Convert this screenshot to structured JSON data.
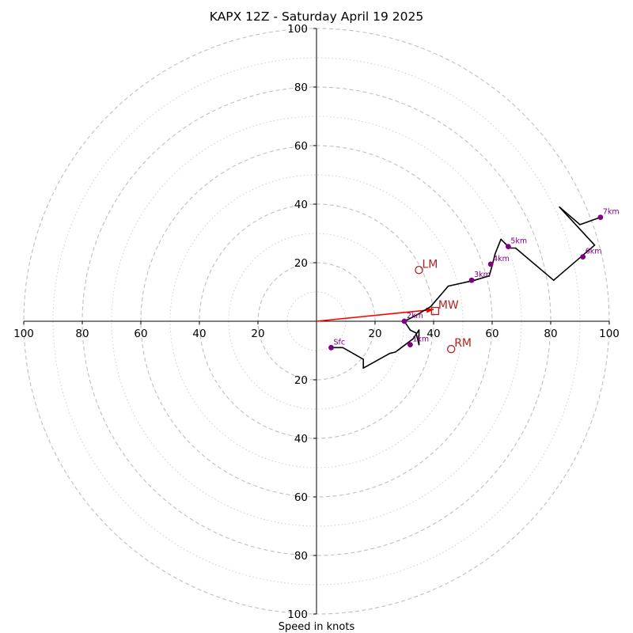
{
  "chart_data": {
    "type": "line",
    "title": "KAPX 12Z - Saturday April 19 2025",
    "xlabel": "Speed in knots",
    "ylabel": "",
    "xlim": [
      -100,
      100
    ],
    "ylim": [
      -100,
      100
    ],
    "major_rings": [
      20,
      40,
      60,
      80,
      100
    ],
    "minor_rings": [
      10,
      30,
      50,
      70,
      90
    ],
    "x_tick_labels": [
      "100",
      "80",
      "60",
      "40",
      "20",
      "20",
      "40",
      "60",
      "80",
      "100"
    ],
    "x_tick_values": [
      -100,
      -80,
      -60,
      -40,
      -20,
      20,
      40,
      60,
      80,
      100
    ],
    "y_tick_labels": [
      "100",
      "80",
      "60",
      "40",
      "20",
      "20",
      "40",
      "60",
      "80",
      "100"
    ],
    "y_tick_values": [
      100,
      80,
      60,
      40,
      20,
      -20,
      -40,
      -60,
      -80,
      -100
    ],
    "colors": {
      "hodograph": "#000000",
      "height_marker": "#800080",
      "motion": "#b22222",
      "shear_vector": "#ff0000",
      "grid": "#bfbfbf"
    },
    "hodograph": {
      "x": [
        5,
        9,
        16,
        16,
        25,
        27,
        33,
        35,
        35,
        34,
        32,
        30,
        34,
        39,
        45,
        54,
        59,
        60,
        61,
        63,
        66,
        68,
        81,
        95,
        83,
        90,
        97
      ],
      "y": [
        -9,
        -9,
        -13,
        -16,
        -11,
        -10.5,
        -6,
        -3,
        -8,
        -4,
        -3,
        0,
        2,
        5,
        12,
        14,
        15.5,
        19,
        23,
        28,
        25,
        25,
        14,
        26,
        39,
        33,
        35.5
      ]
    },
    "height_markers": [
      {
        "label": "Sfc",
        "x": 5,
        "y": -9
      },
      {
        "label": "1km",
        "x": 32,
        "y": -8
      },
      {
        "label": "2km",
        "x": 30,
        "y": 0
      },
      {
        "label": "3km",
        "x": 53,
        "y": 14
      },
      {
        "label": "4km",
        "x": 59.5,
        "y": 19.5
      },
      {
        "label": "5km",
        "x": 65.5,
        "y": 25.5
      },
      {
        "label": "6km",
        "x": 91,
        "y": 22
      },
      {
        "label": "7km",
        "x": 97,
        "y": 35.5
      }
    ],
    "storm_motions": [
      {
        "label": "LM",
        "x": 35,
        "y": 17.5
      },
      {
        "label": "RM",
        "x": 46,
        "y": -9.5
      },
      {
        "label": "MW",
        "x": 40.5,
        "y": 3.5
      }
    ],
    "shear_vector": {
      "x0": 0,
      "y0": 0,
      "x1": 40,
      "y1": 4
    }
  }
}
